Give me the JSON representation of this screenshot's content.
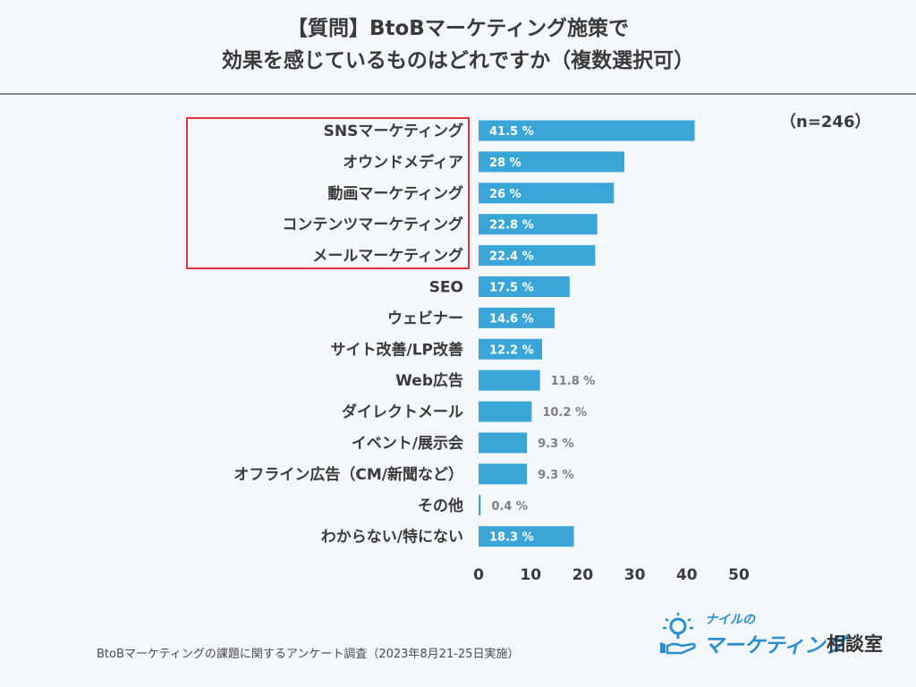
{
  "title": {
    "line1": "【質問】BtoBマーケティング施策で",
    "line2": "効果を感じているものはどれですか（複数選択可）"
  },
  "note": "（n=246）",
  "footer": "BtoBマーケティングの課題に関するアンケート調査（2023年8月21-25日実施）",
  "logo": {
    "small": "ナイルの",
    "main": "マーケティング",
    "sub": "相談室"
  },
  "colors": {
    "bar": "#3aa6d8",
    "highlight": "#e0343a",
    "label_inside": "#ffffff",
    "label_outside": "#7f7f7f",
    "text": "#3a3a3a"
  },
  "chart_data": {
    "type": "bar",
    "orientation": "horizontal",
    "title": "【質問】BtoBマーケティング施策で効果を感じているものはどれですか（複数選択可）",
    "xlabel": "",
    "ylabel": "",
    "xlim": [
      0,
      50
    ],
    "xticks": [
      0,
      10,
      20,
      30,
      40,
      50
    ],
    "unit": "%",
    "categories": [
      "SNSマーケティング",
      "オウンドメディア",
      "動画マーケティング",
      "コンテンツマーケティング",
      "メールマーケティング",
      "SEO",
      "ウェビナー",
      "サイト改善/LP改善",
      "Web広告",
      "ダイレクトメール",
      "イベント/展示会",
      "オフライン広告（CM/新聞など）",
      "その他",
      "わからない/特にない"
    ],
    "values": [
      41.5,
      28,
      26,
      22.8,
      22.4,
      17.5,
      14.6,
      12.2,
      11.8,
      10.2,
      9.3,
      9.3,
      0.4,
      18.3
    ],
    "value_labels": [
      "41.5 %",
      "28 %",
      "26 %",
      "22.8 %",
      "22.4 %",
      "17.5 %",
      "14.6 %",
      "12.2 %",
      "11.8 %",
      "10.2 %",
      "9.3 %",
      "9.3 %",
      "0.4 %",
      "18.3 %"
    ],
    "label_inside": [
      true,
      true,
      true,
      true,
      true,
      true,
      true,
      true,
      false,
      false,
      false,
      false,
      false,
      true
    ],
    "highlighted_categories": [
      "SNSマーケティング",
      "オウンドメディア",
      "動画マーケティング",
      "コンテンツマーケティング",
      "メールマーケティング"
    ],
    "grid": false,
    "legend": "none"
  }
}
